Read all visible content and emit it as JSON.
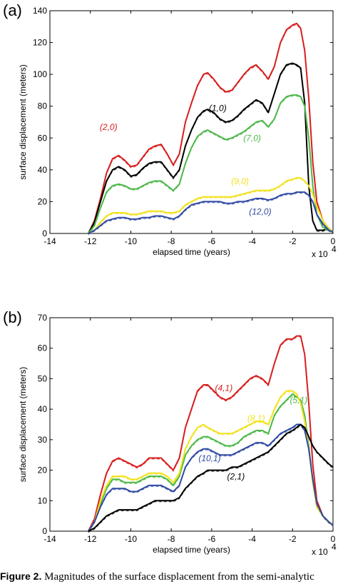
{
  "caption": {
    "label": "Figure 2.",
    "text": "Magnitudes of the surface displacement from the semi-analytic"
  },
  "colors": {
    "red": "#d81e1e",
    "black": "#000000",
    "green": "#4cb848",
    "yellow": "#f2e21c",
    "blue": "#2f4aa3"
  },
  "chart_data": [
    {
      "type": "line",
      "panel_label": "(a)",
      "xlabel": "elapsed time (years)",
      "ylabel": "surface displacement (meters)",
      "x_multiplier_label": "x 10",
      "x_multiplier_exponent": "4",
      "xlim": [
        -14,
        0
      ],
      "ylim": [
        0,
        140
      ],
      "xticks": [
        -14,
        -12,
        -10,
        -8,
        -6,
        -4,
        -2,
        0
      ],
      "yticks": [
        0,
        20,
        40,
        60,
        80,
        100,
        120,
        140
      ],
      "grid": false,
      "series": [
        {
          "name": "(2,0)",
          "color": "#d81e1e",
          "label_at": [
            -11.1,
            65
          ],
          "x": [
            -12.1,
            -11.8,
            -11.5,
            -11.2,
            -10.9,
            -10.6,
            -10.3,
            -10.0,
            -9.7,
            -9.4,
            -9.1,
            -8.8,
            -8.5,
            -8.2,
            -7.9,
            -7.6,
            -7.3,
            -7.0,
            -6.7,
            -6.4,
            -6.2,
            -5.9,
            -5.6,
            -5.3,
            -5.0,
            -4.7,
            -4.4,
            -4.1,
            -3.8,
            -3.5,
            -3.2,
            -2.9,
            -2.6,
            -2.3,
            -2.0,
            -1.8,
            -1.6,
            -1.4,
            -1.2,
            -1.0,
            -0.8,
            -0.5,
            -0.2,
            0
          ],
          "y": [
            0,
            8,
            22,
            38,
            47,
            49,
            46,
            42,
            43,
            48,
            53,
            55,
            56,
            50,
            43,
            50,
            70,
            82,
            93,
            100,
            101,
            97,
            92,
            89,
            90,
            95,
            100,
            104,
            106,
            102,
            97,
            105,
            120,
            128,
            131,
            132,
            129,
            115,
            85,
            45,
            20,
            8,
            3,
            1
          ]
        },
        {
          "name": "(1,0)",
          "color": "#000000",
          "label_at": [
            -5.7,
            77
          ],
          "x": [
            -12.1,
            -11.8,
            -11.5,
            -11.2,
            -10.9,
            -10.6,
            -10.3,
            -10.0,
            -9.7,
            -9.4,
            -9.1,
            -8.8,
            -8.5,
            -8.2,
            -7.9,
            -7.6,
            -7.3,
            -7.0,
            -6.7,
            -6.4,
            -6.2,
            -5.9,
            -5.6,
            -5.3,
            -5.0,
            -4.7,
            -4.4,
            -4.1,
            -3.8,
            -3.5,
            -3.2,
            -2.9,
            -2.6,
            -2.3,
            -2.0,
            -1.8,
            -1.6,
            -1.4,
            -1.2,
            -1.0,
            -0.8,
            -0.5,
            -0.2,
            0
          ],
          "y": [
            0,
            7,
            20,
            33,
            40,
            42,
            40,
            36,
            37,
            41,
            44,
            45,
            45,
            40,
            35,
            40,
            55,
            65,
            73,
            77,
            78,
            76,
            72,
            70,
            71,
            74,
            78,
            81,
            84,
            82,
            76,
            88,
            100,
            106,
            107,
            106,
            104,
            82,
            30,
            8,
            2,
            2,
            3,
            1
          ]
        },
        {
          "name": "(7,0)",
          "color": "#4cb848",
          "label_at": [
            -4.0,
            58
          ],
          "x": [
            -12.1,
            -11.8,
            -11.5,
            -11.2,
            -10.9,
            -10.6,
            -10.3,
            -10.0,
            -9.7,
            -9.4,
            -9.1,
            -8.8,
            -8.5,
            -8.2,
            -7.9,
            -7.6,
            -7.3,
            -7.0,
            -6.7,
            -6.4,
            -6.2,
            -5.9,
            -5.6,
            -5.3,
            -5.0,
            -4.7,
            -4.4,
            -4.1,
            -3.8,
            -3.5,
            -3.2,
            -2.9,
            -2.6,
            -2.3,
            -2.0,
            -1.8,
            -1.6,
            -1.4,
            -1.2,
            -1.0,
            -0.8,
            -0.5,
            -0.2,
            0
          ],
          "y": [
            0,
            5,
            16,
            26,
            30,
            31,
            30,
            28,
            28,
            30,
            32,
            33,
            33,
            30,
            27,
            31,
            44,
            54,
            61,
            64,
            65,
            63,
            61,
            59,
            60,
            62,
            64,
            67,
            70,
            71,
            67,
            72,
            82,
            86,
            87,
            87,
            86,
            80,
            60,
            30,
            12,
            4,
            2,
            1
          ]
        },
        {
          "name": "(9,0)",
          "color": "#f2e21c",
          "label_at": [
            -4.6,
            31
          ],
          "x": [
            -12.1,
            -11.8,
            -11.5,
            -11.2,
            -10.9,
            -10.6,
            -10.3,
            -10.0,
            -9.7,
            -9.4,
            -9.1,
            -8.8,
            -8.5,
            -8.2,
            -7.9,
            -7.6,
            -7.3,
            -7.0,
            -6.7,
            -6.4,
            -6.2,
            -5.9,
            -5.6,
            -5.3,
            -5.0,
            -4.7,
            -4.4,
            -4.1,
            -3.8,
            -3.5,
            -3.2,
            -2.9,
            -2.6,
            -2.3,
            -2.0,
            -1.8,
            -1.6,
            -1.4,
            -1.2,
            -1.0,
            -0.8,
            -0.5,
            -0.2,
            0
          ],
          "y": [
            0,
            2,
            7,
            11,
            13,
            13,
            13,
            12,
            12,
            13,
            14,
            14,
            14,
            13,
            13,
            14,
            18,
            20,
            22,
            23,
            23,
            23,
            23,
            23,
            23,
            24,
            25,
            26,
            27,
            27,
            27,
            28,
            30,
            33,
            34,
            35,
            35,
            33,
            30,
            25,
            17,
            8,
            3,
            1
          ]
        },
        {
          "name": "(12,0)",
          "color": "#2f4aa3",
          "label_at": [
            -3.6,
            12
          ],
          "x": [
            -12.1,
            -11.8,
            -11.5,
            -11.2,
            -10.9,
            -10.6,
            -10.3,
            -10.0,
            -9.7,
            -9.4,
            -9.1,
            -8.8,
            -8.5,
            -8.2,
            -7.9,
            -7.6,
            -7.3,
            -7.0,
            -6.7,
            -6.4,
            -6.2,
            -5.9,
            -5.6,
            -5.3,
            -5.0,
            -4.7,
            -4.4,
            -4.1,
            -3.8,
            -3.5,
            -3.2,
            -2.9,
            -2.6,
            -2.3,
            -2.0,
            -1.8,
            -1.6,
            -1.4,
            -1.2,
            -1.0,
            -0.8,
            -0.5,
            -0.2,
            0
          ],
          "y": [
            0,
            2,
            5,
            8,
            9,
            10,
            10,
            9,
            9,
            10,
            10,
            11,
            11,
            10,
            9,
            11,
            15,
            18,
            19,
            20,
            20,
            20,
            20,
            19,
            19,
            20,
            20,
            21,
            22,
            22,
            21,
            22,
            24,
            25,
            25,
            26,
            26,
            26,
            24,
            20,
            12,
            6,
            2,
            1
          ]
        }
      ]
    },
    {
      "type": "line",
      "panel_label": "(b)",
      "xlabel": "elapsed time (years)",
      "ylabel": "surface displacement (meters)",
      "x_multiplier_label": "x 10",
      "x_multiplier_exponent": "4",
      "xlim": [
        -14,
        0
      ],
      "ylim": [
        0,
        70
      ],
      "xticks": [
        -14,
        -12,
        -10,
        -8,
        -6,
        -4,
        -2,
        0
      ],
      "yticks": [
        0,
        10,
        20,
        30,
        40,
        50,
        60,
        70
      ],
      "grid": false,
      "series": [
        {
          "name": "(4,1)",
          "color": "#d81e1e",
          "label_at": [
            -5.4,
            46
          ],
          "x": [
            -12.1,
            -11.8,
            -11.5,
            -11.2,
            -10.9,
            -10.6,
            -10.3,
            -10.0,
            -9.7,
            -9.4,
            -9.1,
            -8.8,
            -8.5,
            -8.2,
            -7.9,
            -7.6,
            -7.3,
            -7.0,
            -6.7,
            -6.4,
            -6.2,
            -5.9,
            -5.6,
            -5.3,
            -5.0,
            -4.7,
            -4.4,
            -4.1,
            -3.8,
            -3.5,
            -3.2,
            -2.9,
            -2.6,
            -2.3,
            -2.0,
            -1.8,
            -1.6,
            -1.4,
            -1.2,
            -1.0,
            -0.8,
            -0.5,
            -0.2,
            0
          ],
          "y": [
            0,
            4,
            12,
            19,
            23,
            24,
            23,
            22,
            21,
            22,
            24,
            24,
            24,
            22,
            20,
            24,
            34,
            40,
            46,
            48,
            48,
            46,
            44,
            43,
            44,
            46,
            48,
            50,
            51,
            50,
            48,
            55,
            61,
            63,
            63,
            64,
            64,
            58,
            42,
            22,
            10,
            5,
            3,
            2
          ]
        },
        {
          "name": "(5,1)",
          "color": "#4cb848",
          "label_at": [
            -1.7,
            42
          ],
          "x": [
            -12.1,
            -11.8,
            -11.5,
            -11.2,
            -10.9,
            -10.6,
            -10.3,
            -10.0,
            -9.7,
            -9.4,
            -9.1,
            -8.8,
            -8.5,
            -8.2,
            -7.9,
            -7.6,
            -7.3,
            -7.0,
            -6.7,
            -6.4,
            -6.2,
            -5.9,
            -5.6,
            -5.3,
            -5.0,
            -4.7,
            -4.4,
            -4.1,
            -3.8,
            -3.5,
            -3.2,
            -2.9,
            -2.6,
            -2.3,
            -2.0,
            -1.8,
            -1.6,
            -1.4,
            -1.2,
            -1.0,
            -0.8,
            -0.5,
            -0.2,
            0
          ],
          "y": [
            0,
            3,
            9,
            14,
            17,
            17,
            16,
            16,
            16,
            17,
            18,
            18,
            18,
            17,
            15,
            18,
            25,
            28,
            30,
            31,
            31,
            30,
            29,
            28,
            28,
            29,
            31,
            32,
            33,
            33,
            32,
            38,
            41,
            43,
            45,
            44,
            43,
            38,
            28,
            16,
            8,
            5,
            3,
            2
          ]
        },
        {
          "name": "(8,1)",
          "color": "#f2e21c",
          "label_at": [
            -3.8,
            36
          ],
          "x": [
            -12.1,
            -11.8,
            -11.5,
            -11.2,
            -10.9,
            -10.6,
            -10.3,
            -10.0,
            -9.7,
            -9.4,
            -9.1,
            -8.8,
            -8.5,
            -8.2,
            -7.9,
            -7.6,
            -7.3,
            -7.0,
            -6.7,
            -6.4,
            -6.2,
            -5.9,
            -5.6,
            -5.3,
            -5.0,
            -4.7,
            -4.4,
            -4.1,
            -3.8,
            -3.5,
            -3.2,
            -2.9,
            -2.6,
            -2.3,
            -2.0,
            -1.8,
            -1.6,
            -1.4,
            -1.2,
            -1.0,
            -0.8,
            -0.5,
            -0.2,
            0
          ],
          "y": [
            0,
            3,
            10,
            15,
            18,
            18,
            18,
            17,
            17,
            18,
            19,
            19,
            19,
            18,
            16,
            19,
            27,
            31,
            34,
            35,
            34,
            33,
            32,
            32,
            32,
            33,
            34,
            35,
            36,
            36,
            35,
            40,
            44,
            46,
            46,
            45,
            42,
            36,
            27,
            16,
            8,
            5,
            3,
            2
          ]
        },
        {
          "name": "(10,1)",
          "color": "#2f4aa3",
          "label_at": [
            -6.1,
            23
          ],
          "x": [
            -12.1,
            -11.8,
            -11.5,
            -11.2,
            -10.9,
            -10.6,
            -10.3,
            -10.0,
            -9.7,
            -9.4,
            -9.1,
            -8.8,
            -8.5,
            -8.2,
            -7.9,
            -7.6,
            -7.3,
            -7.0,
            -6.7,
            -6.4,
            -6.2,
            -5.9,
            -5.6,
            -5.3,
            -5.0,
            -4.7,
            -4.4,
            -4.1,
            -3.8,
            -3.5,
            -3.2,
            -2.9,
            -2.6,
            -2.3,
            -2.0,
            -1.8,
            -1.6,
            -1.4,
            -1.2,
            -1.0,
            -0.8,
            -0.5,
            -0.2,
            0
          ],
          "y": [
            0,
            3,
            8,
            12,
            14,
            14,
            14,
            13,
            13,
            14,
            15,
            15,
            15,
            14,
            13,
            15,
            21,
            24,
            26,
            27,
            27,
            26,
            25,
            25,
            25,
            26,
            27,
            28,
            29,
            29,
            28,
            30,
            32,
            33,
            34,
            35,
            35,
            33,
            27,
            17,
            9,
            5,
            3,
            2
          ]
        },
        {
          "name": "(2,1)",
          "color": "#000000",
          "label_at": [
            -4.8,
            17
          ],
          "x": [
            -12.1,
            -11.8,
            -11.5,
            -11.2,
            -10.9,
            -10.6,
            -10.3,
            -10.0,
            -9.7,
            -9.4,
            -9.1,
            -8.8,
            -8.5,
            -8.2,
            -7.9,
            -7.6,
            -7.3,
            -7.0,
            -6.7,
            -6.4,
            -6.2,
            -5.9,
            -5.6,
            -5.3,
            -5.0,
            -4.7,
            -4.4,
            -4.1,
            -3.8,
            -3.5,
            -3.2,
            -2.9,
            -2.6,
            -2.3,
            -2.0,
            -1.8,
            -1.6,
            -1.4,
            -1.2,
            -1.0,
            -0.8,
            -0.5,
            -0.2,
            0
          ],
          "y": [
            0,
            1,
            3,
            5,
            6,
            7,
            7,
            7,
            7,
            8,
            9,
            10,
            10,
            10,
            10,
            11,
            14,
            16,
            18,
            19,
            20,
            20,
            20,
            20,
            21,
            21,
            22,
            23,
            24,
            25,
            26,
            28,
            30,
            32,
            33,
            34,
            35,
            34,
            31,
            28,
            26,
            24,
            22,
            21
          ]
        }
      ]
    }
  ]
}
